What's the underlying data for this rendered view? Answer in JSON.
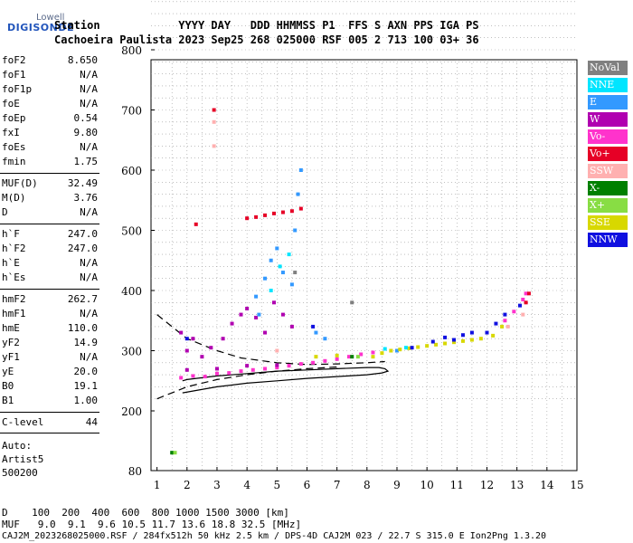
{
  "logo": {
    "line1": "Lowell",
    "line2": "DIGISONDE"
  },
  "header": {
    "row1": "Station            YYYY DAY   DDD HHMMSS P1  FFS S AXN PPS IGA PS",
    "row2": "Cachoeira Paulista 2023 Sep25 268 025000 RSF 005 2 713 100 03+ 36"
  },
  "params": [
    {
      "k": "foF2",
      "v": "8.650"
    },
    {
      "k": "foF1",
      "v": "N/A"
    },
    {
      "k": "foF1p",
      "v": "N/A"
    },
    {
      "k": "foE",
      "v": "N/A"
    },
    {
      "k": "foEp",
      "v": "0.54"
    },
    {
      "k": "fxI",
      "v": "9.80"
    },
    {
      "k": "foEs",
      "v": "N/A"
    },
    {
      "k": "fmin",
      "v": "1.75"
    },
    {
      "k": "MUF(D)",
      "v": "32.49"
    },
    {
      "k": "M(D)",
      "v": "3.76"
    },
    {
      "k": "D",
      "v": "N/A"
    },
    {
      "k": "h`F",
      "v": "247.0"
    },
    {
      "k": "h`F2",
      "v": "247.0"
    },
    {
      "k": "h`E",
      "v": "N/A"
    },
    {
      "k": "h`Es",
      "v": "N/A"
    },
    {
      "k": "hmF2",
      "v": "262.7"
    },
    {
      "k": "hmF1",
      "v": "N/A"
    },
    {
      "k": "hmE",
      "v": "110.0"
    },
    {
      "k": "yF2",
      "v": "14.9"
    },
    {
      "k": "yF1",
      "v": "N/A"
    },
    {
      "k": "yE",
      "v": "20.0"
    },
    {
      "k": "B0",
      "v": "19.1"
    },
    {
      "k": "B1",
      "v": "1.00"
    },
    {
      "k": "C-level",
      "v": "44"
    }
  ],
  "auto": {
    "l1": "Auto:",
    "l2": "Artist5",
    "l3": "500200"
  },
  "legend": [
    {
      "label": "NoVal",
      "color": "#808080"
    },
    {
      "label": "NNE",
      "color": "#00e5ff"
    },
    {
      "label": "E",
      "color": "#3399ff"
    },
    {
      "label": "W",
      "color": "#b000b0"
    },
    {
      "label": "Vo-",
      "color": "#ff33cc"
    },
    {
      "label": "Vo+",
      "color": "#e60026"
    },
    {
      "label": "SSW",
      "color": "#ffb0b0"
    },
    {
      "label": "X-",
      "color": "#008000"
    },
    {
      "label": "X+",
      "color": "#88dd44"
    },
    {
      "label": "SSE",
      "color": "#d8d800"
    },
    {
      "label": "NNW",
      "color": "#1010e0"
    }
  ],
  "footer": {
    "d_row": "D    100  200  400  600  800 1000 1500 3000 [km]",
    "muf_row": "MUF   9.0  9.1  9.6 10.5 11.7 13.6 18.8 32.5 [MHz]",
    "file_row": "CAJ2M_2023268025000.RSF / 284fx512h 50 kHz 2.5 km / DPS-4D CAJ2M 023 / 22.7 S 315.0 E Ion2Png 1.3.20"
  },
  "chart_data": {
    "type": "scatter",
    "title": "",
    "xlabel": "",
    "ylabel": "",
    "xlim": [
      0.8,
      15
    ],
    "ylim": [
      80,
      900
    ],
    "x_ticks": [
      1,
      2,
      3,
      4,
      5,
      6,
      7,
      8,
      9,
      10,
      11,
      12,
      13,
      14,
      15
    ],
    "y_ticks": [
      80,
      200,
      300,
      400,
      500,
      600,
      700,
      800,
      900
    ],
    "grid": true,
    "legend_position": "right",
    "series": [
      {
        "name": "Vo-",
        "color": "#ff33cc",
        "points": [
          [
            1.8,
            255
          ],
          [
            2.2,
            258
          ],
          [
            2.6,
            257
          ],
          [
            3.0,
            262
          ],
          [
            3.4,
            263
          ],
          [
            3.8,
            266
          ],
          [
            4.2,
            268
          ],
          [
            4.6,
            270
          ],
          [
            5.0,
            272
          ],
          [
            5.4,
            275
          ],
          [
            5.8,
            278
          ],
          [
            6.2,
            280
          ],
          [
            6.6,
            283
          ],
          [
            7.0,
            286
          ],
          [
            7.4,
            290
          ],
          [
            7.8,
            294
          ],
          [
            8.2,
            297
          ],
          [
            12.6,
            350
          ],
          [
            12.9,
            365
          ],
          [
            13.2,
            385
          ],
          [
            13.3,
            395
          ]
        ]
      },
      {
        "name": "W",
        "color": "#b000b0",
        "points": [
          [
            1.8,
            330
          ],
          [
            2.0,
            300
          ],
          [
            2.2,
            320
          ],
          [
            2.5,
            290
          ],
          [
            2.8,
            305
          ],
          [
            3.2,
            320
          ],
          [
            3.5,
            345
          ],
          [
            3.8,
            360
          ],
          [
            4.0,
            370
          ],
          [
            4.3,
            355
          ],
          [
            4.6,
            330
          ],
          [
            4.9,
            380
          ],
          [
            5.2,
            360
          ],
          [
            5.5,
            340
          ],
          [
            2.0,
            268
          ],
          [
            3.0,
            270
          ],
          [
            4.0,
            275
          ],
          [
            5.0,
            276
          ]
        ]
      },
      {
        "name": "E",
        "color": "#3399ff",
        "points": [
          [
            4.3,
            390
          ],
          [
            4.6,
            420
          ],
          [
            4.8,
            450
          ],
          [
            5.0,
            470
          ],
          [
            5.2,
            430
          ],
          [
            5.5,
            410
          ],
          [
            5.6,
            500
          ],
          [
            5.7,
            560
          ],
          [
            5.8,
            600
          ],
          [
            4.4,
            360
          ],
          [
            6.3,
            330
          ],
          [
            6.6,
            320
          ],
          [
            9.0,
            300
          ]
        ]
      },
      {
        "name": "SSE",
        "color": "#d8d800",
        "points": [
          [
            8.2,
            290
          ],
          [
            8.5,
            296
          ],
          [
            8.8,
            300
          ],
          [
            9.1,
            302
          ],
          [
            9.4,
            304
          ],
          [
            9.7,
            306
          ],
          [
            10.0,
            308
          ],
          [
            10.3,
            310
          ],
          [
            10.6,
            312
          ],
          [
            10.9,
            314
          ],
          [
            11.2,
            316
          ],
          [
            11.5,
            318
          ],
          [
            11.8,
            320
          ],
          [
            12.2,
            325
          ],
          [
            12.5,
            340
          ],
          [
            6.3,
            290
          ],
          [
            7.0,
            292
          ]
        ]
      },
      {
        "name": "NNW",
        "color": "#1010e0",
        "points": [
          [
            9.5,
            305
          ],
          [
            10.2,
            315
          ],
          [
            10.6,
            322
          ],
          [
            10.9,
            318
          ],
          [
            11.2,
            326
          ],
          [
            11.5,
            330
          ],
          [
            12.0,
            330
          ],
          [
            12.3,
            345
          ],
          [
            12.6,
            360
          ],
          [
            13.1,
            375
          ],
          [
            2.0,
            320
          ],
          [
            6.2,
            340
          ]
        ]
      },
      {
        "name": "Vo+",
        "color": "#e60026",
        "points": [
          [
            4.0,
            520
          ],
          [
            4.3,
            522
          ],
          [
            4.6,
            525
          ],
          [
            4.9,
            528
          ],
          [
            5.2,
            530
          ],
          [
            5.5,
            532
          ],
          [
            5.8,
            536
          ],
          [
            2.3,
            510
          ],
          [
            2.9,
            700
          ],
          [
            13.3,
            380
          ],
          [
            13.4,
            395
          ]
        ]
      },
      {
        "name": "SSW",
        "color": "#ffb0b0",
        "points": [
          [
            2.9,
            640
          ],
          [
            2.9,
            680
          ],
          [
            5.0,
            300
          ],
          [
            12.7,
            340
          ],
          [
            13.2,
            360
          ]
        ]
      },
      {
        "name": "NNE",
        "color": "#00e5ff",
        "points": [
          [
            4.8,
            400
          ],
          [
            5.1,
            440
          ],
          [
            5.4,
            460
          ],
          [
            8.6,
            303
          ],
          [
            9.3,
            305
          ]
        ]
      },
      {
        "name": "X-",
        "color": "#008000",
        "points": [
          [
            1.5,
            116
          ],
          [
            7.5,
            290
          ]
        ]
      },
      {
        "name": "X+",
        "color": "#88dd44",
        "points": [
          [
            1.6,
            116
          ],
          [
            7.7,
            290
          ]
        ]
      },
      {
        "name": "NoVal",
        "color": "#808080",
        "points": [
          [
            5.6,
            430
          ],
          [
            7.5,
            380
          ]
        ]
      }
    ],
    "lines": [
      {
        "name": "profile-solid",
        "color": "#000000",
        "points": [
          [
            1.85,
            230
          ],
          [
            3,
            240
          ],
          [
            4,
            246
          ],
          [
            5,
            250
          ],
          [
            6,
            254
          ],
          [
            7,
            257
          ],
          [
            8,
            260
          ],
          [
            8.5,
            263
          ],
          [
            8.7,
            266
          ],
          [
            8.6,
            270
          ],
          [
            8.4,
            272
          ],
          [
            8,
            272
          ],
          [
            7,
            270
          ],
          [
            6,
            268
          ],
          [
            5,
            266
          ],
          [
            4,
            262
          ],
          [
            3,
            258
          ],
          [
            2,
            252
          ],
          [
            1.85,
            250
          ]
        ]
      },
      {
        "name": "profile-dashed",
        "color": "#000000",
        "points": [
          [
            1.0,
            360
          ],
          [
            2.0,
            320
          ],
          [
            3.0,
            300
          ],
          [
            3.8,
            288
          ],
          [
            5.0,
            280
          ],
          [
            6.0,
            277
          ],
          [
            7.0,
            278
          ],
          [
            8.0,
            280
          ],
          [
            8.6,
            282
          ]
        ]
      },
      {
        "name": "profile-dashed-low",
        "color": "#000000",
        "points": [
          [
            1.0,
            220
          ],
          [
            2.0,
            240
          ],
          [
            3.0,
            252
          ],
          [
            4.0,
            260
          ],
          [
            5.0,
            266
          ],
          [
            6.0,
            270
          ],
          [
            7.0,
            273
          ]
        ]
      }
    ]
  }
}
